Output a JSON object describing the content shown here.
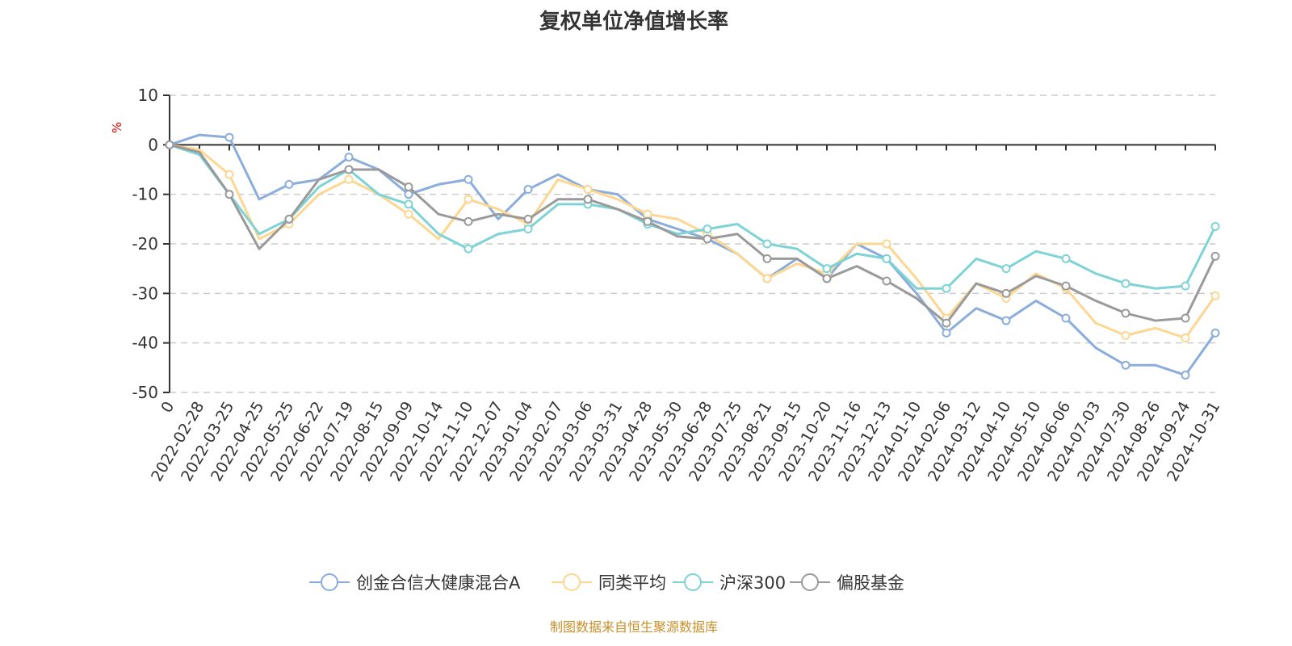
{
  "chart_data": {
    "type": "line",
    "title": "复权单位净值增长率",
    "ylabel": "%",
    "ylim": [
      -50,
      10
    ],
    "yticks": [
      10,
      0,
      -10,
      -20,
      -30,
      -40,
      -50
    ],
    "grid": true,
    "legend_position": "bottom",
    "categories": [
      "0",
      "2022-02-28",
      "2022-03-25",
      "2022-04-25",
      "2022-05-25",
      "2022-06-22",
      "2022-07-19",
      "2022-08-15",
      "2022-09-09",
      "2022-10-14",
      "2022-11-10",
      "2022-12-07",
      "2023-01-04",
      "2023-02-07",
      "2023-03-06",
      "2023-03-31",
      "2023-04-28",
      "2023-05-30",
      "2023-06-28",
      "2023-07-25",
      "2023-08-21",
      "2023-09-15",
      "2023-10-20",
      "2023-11-16",
      "2023-12-13",
      "2024-01-10",
      "2024-02-06",
      "2024-03-12",
      "2024-04-10",
      "2024-05-10",
      "2024-06-06",
      "2024-07-03",
      "2024-07-30",
      "2024-08-26",
      "2024-09-24",
      "2024-10-31"
    ],
    "series": [
      {
        "name": "创金合信大健康混合A",
        "color": "#8aaddb",
        "values": [
          0,
          2,
          1.5,
          -11,
          -8,
          -7,
          -2.5,
          -5,
          -10,
          -8,
          -7,
          -15,
          -9,
          -6,
          -9,
          -10,
          -15,
          -17,
          -19,
          -22,
          -27,
          -23,
          -27,
          -20,
          -23,
          -30,
          -38,
          -33,
          -35.5,
          -31.5,
          -35,
          -41,
          -44.5,
          -44.5,
          -46.5,
          -38
        ]
      },
      {
        "name": "同类平均",
        "color": "#fdd792",
        "values": [
          0,
          -1,
          -6,
          -19,
          -16,
          -10,
          -7,
          -10,
          -14,
          -19,
          -11,
          -13,
          -16,
          -7,
          -9,
          -11,
          -14,
          -15,
          -18,
          -22,
          -27,
          -24,
          -26,
          -20,
          -20,
          -27,
          -35,
          -28,
          -31,
          -26,
          -29,
          -36,
          -38.5,
          -37,
          -39,
          -30.5
        ]
      },
      {
        "name": "沪深300",
        "color": "#7dd3d5",
        "values": [
          0,
          -2,
          -10,
          -18,
          -15,
          -8.5,
          -5,
          -10,
          -12,
          -18,
          -21,
          -18,
          -17,
          -12,
          -12,
          -13,
          -16,
          -18,
          -17,
          -16,
          -20,
          -21,
          -25,
          -22,
          -23,
          -29,
          -29,
          -23,
          -25,
          -21.5,
          -23,
          -26,
          -28,
          -29,
          -28.5,
          -16.5
        ]
      },
      {
        "name": "偏股基金",
        "color": "#9a9a9a",
        "values": [
          0,
          -1.5,
          -10,
          -21,
          -15,
          -7,
          -5,
          -5,
          -8.5,
          -14,
          -15.5,
          -14,
          -15,
          -11,
          -11,
          -13,
          -15.5,
          -18.5,
          -19,
          -18,
          -23,
          -23,
          -27,
          -24.5,
          -27.5,
          -31,
          -36,
          -28,
          -30,
          -26.5,
          -28.5,
          -31.5,
          -34,
          -35.5,
          -35,
          -22.5
        ]
      }
    ]
  },
  "source": "制图数据来自恒生聚源数据库"
}
